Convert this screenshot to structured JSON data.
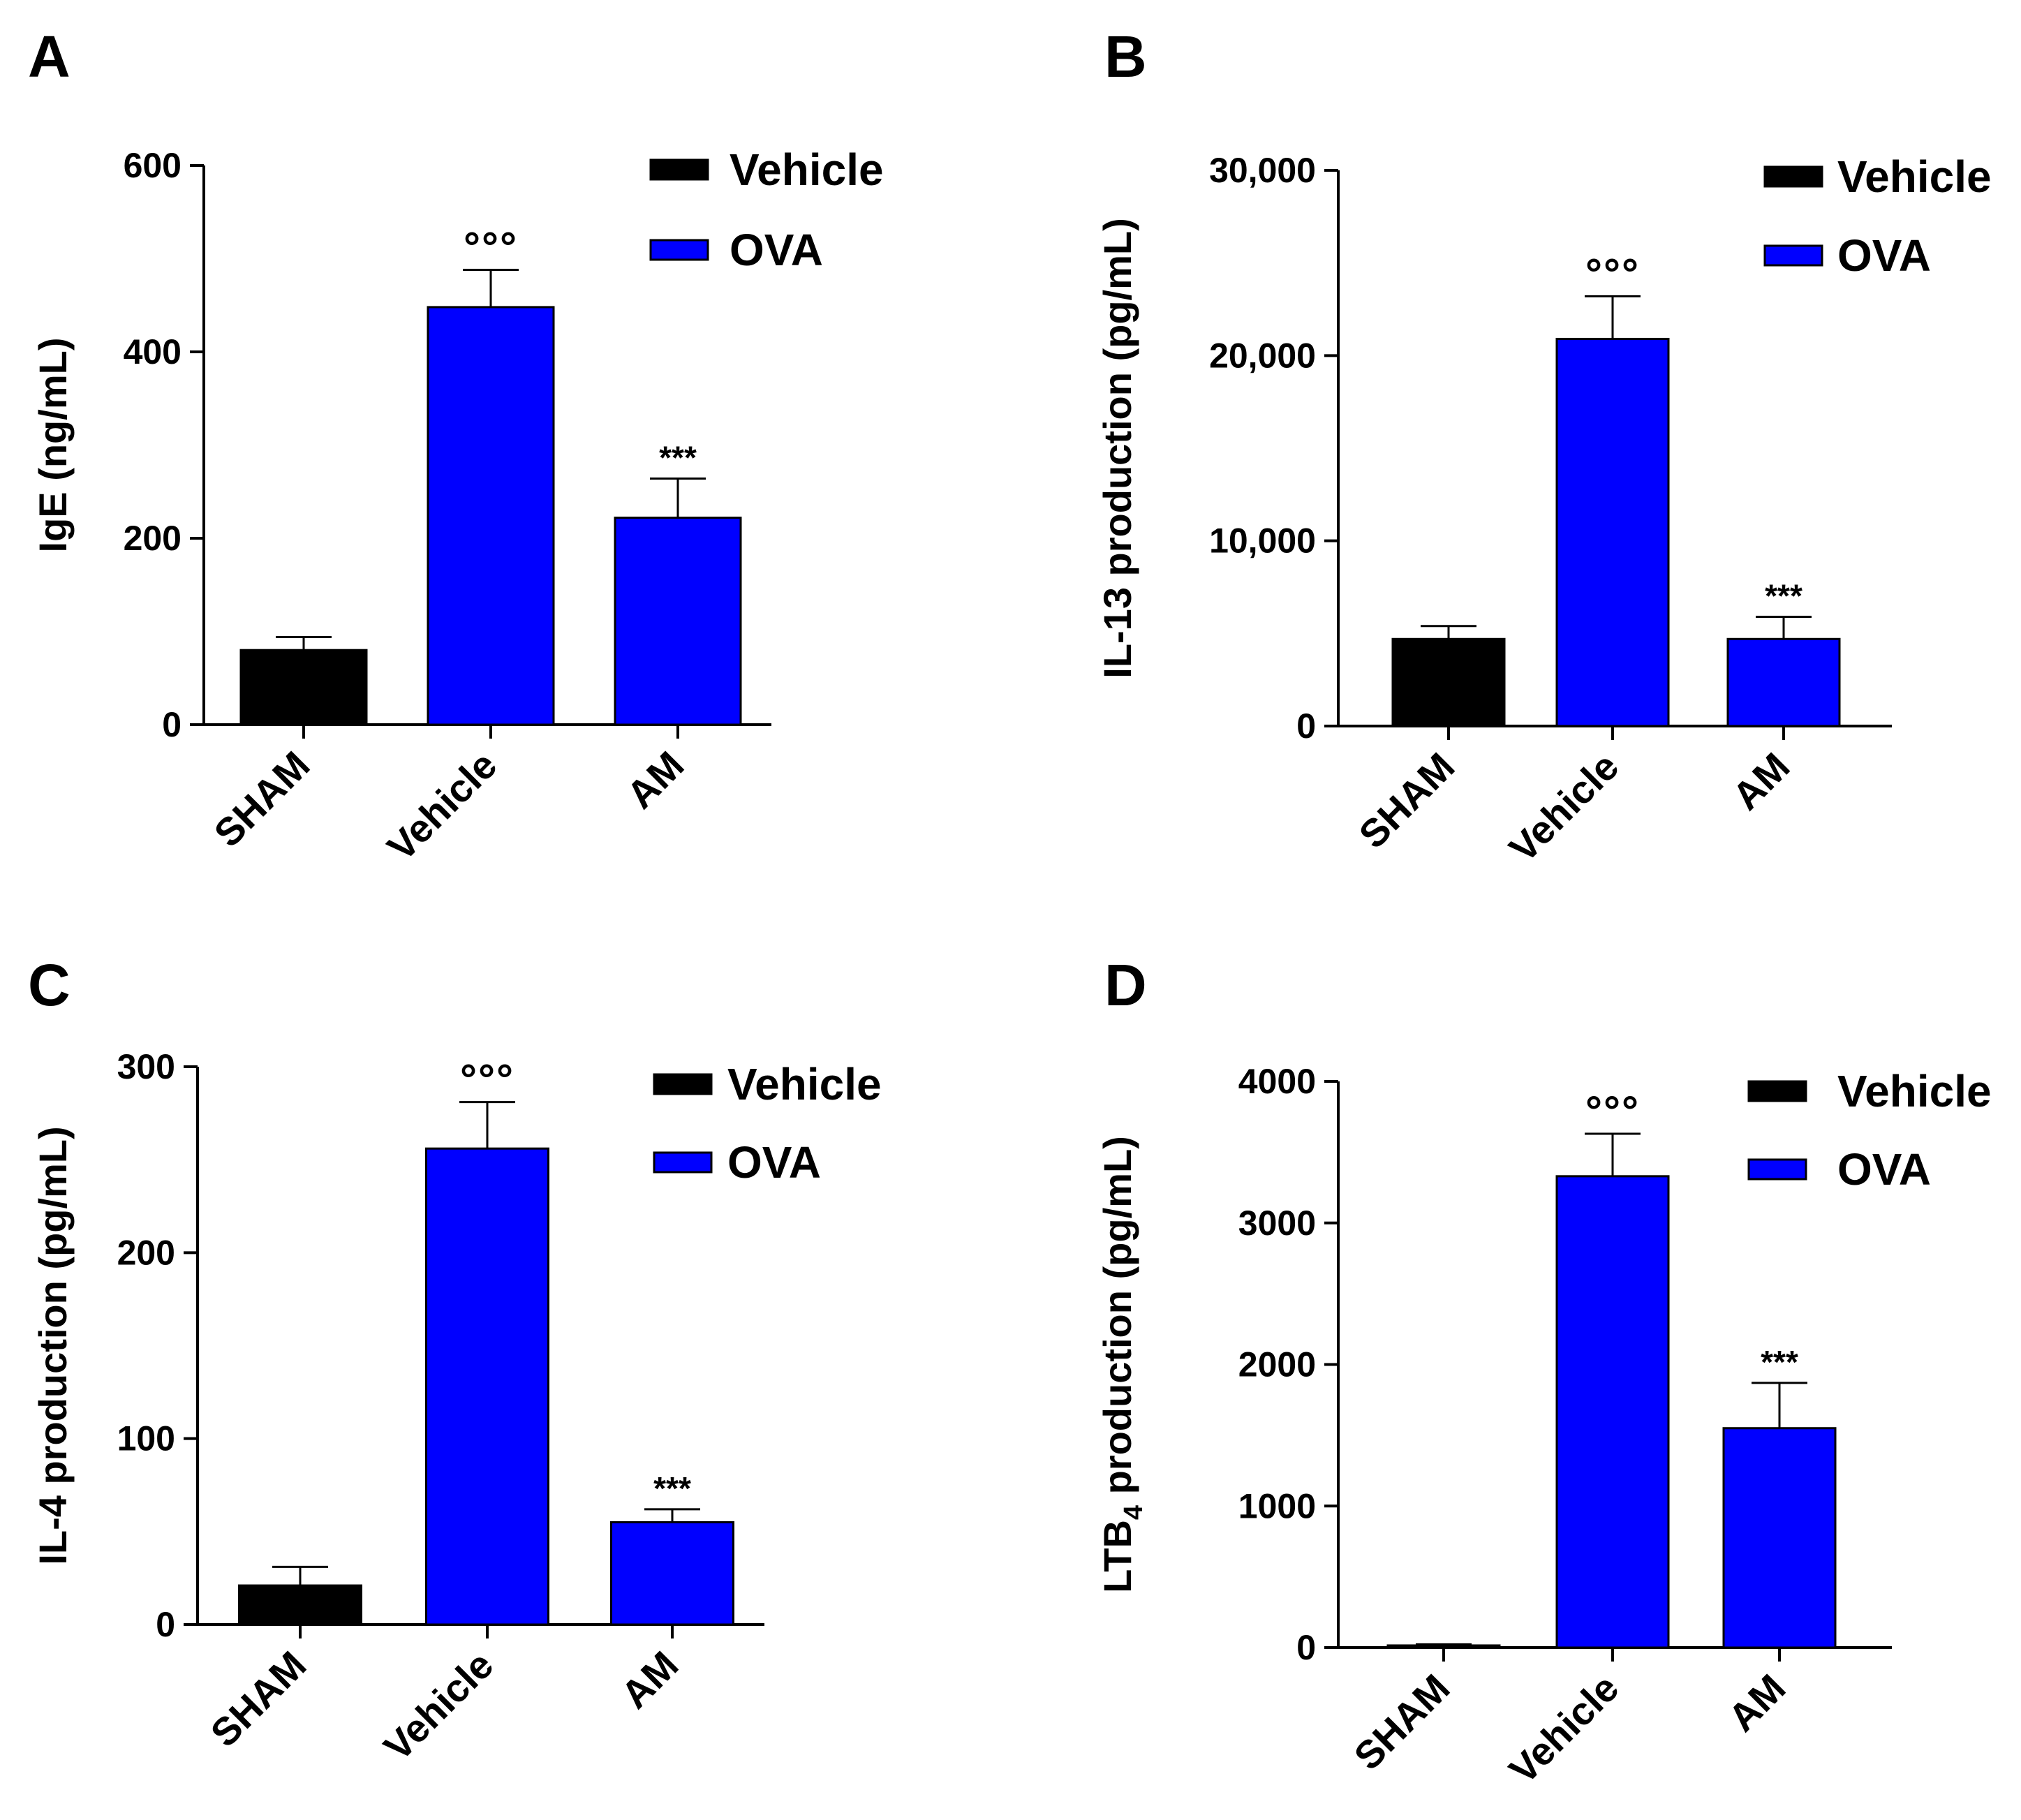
{
  "legend": [
    "Vehicle",
    "OVA"
  ],
  "colors": {
    "vehicle": "#000000",
    "ova": "#0000ff",
    "axis": "#000000",
    "sig": "#333333"
  },
  "chart_data": [
    {
      "panel": "A",
      "type": "bar",
      "categories": [
        "SHAM",
        "Vehicle",
        "AM"
      ],
      "values": [
        80,
        448,
        222
      ],
      "errors": [
        14,
        40,
        42
      ],
      "groups": [
        "Vehicle",
        "OVA",
        "OVA"
      ],
      "annotations": [
        "",
        "°°°",
        "***"
      ],
      "ylabel": "IgE (ng/mL)",
      "ylim": [
        0,
        600
      ],
      "yticks": [
        0,
        200,
        400,
        600
      ],
      "ytick_labels": [
        "0",
        "200",
        "400",
        "600"
      ],
      "legend": [
        "Vehicle",
        "OVA"
      ],
      "legend_position": "top-right"
    },
    {
      "panel": "B",
      "type": "bar",
      "categories": [
        "SHAM",
        "Vehicle",
        "AM"
      ],
      "values": [
        4700,
        20900,
        4700
      ],
      "errors": [
        700,
        2300,
        1200
      ],
      "groups": [
        "Vehicle",
        "OVA",
        "OVA"
      ],
      "annotations": [
        "",
        "°°°",
        "***"
      ],
      "ylabel": "IL-13 production (pg/mL)",
      "ylim": [
        0,
        30000
      ],
      "yticks": [
        0,
        10000,
        20000,
        30000
      ],
      "ytick_labels": [
        "0",
        "10,000",
        "20,000",
        "30,000"
      ],
      "legend": [
        "Vehicle",
        "OVA"
      ],
      "legend_position": "top-right"
    },
    {
      "panel": "C",
      "type": "bar",
      "categories": [
        "SHAM",
        "Vehicle",
        "AM"
      ],
      "values": [
        21,
        256,
        55
      ],
      "errors": [
        10,
        25,
        7
      ],
      "groups": [
        "Vehicle",
        "OVA",
        "OVA"
      ],
      "annotations": [
        "",
        "°°°",
        "***"
      ],
      "ylabel": "IL-4 production (pg/mL)",
      "ylim": [
        0,
        300
      ],
      "yticks": [
        0,
        100,
        200,
        300
      ],
      "ytick_labels": [
        "0",
        "100",
        "200",
        "300"
      ],
      "legend": [
        "Vehicle",
        "OVA"
      ],
      "legend_position": "top-right"
    },
    {
      "panel": "D",
      "type": "bar",
      "categories": [
        "SHAM",
        "Vehicle",
        "AM"
      ],
      "values": [
        15,
        3330,
        1550
      ],
      "errors": [
        8,
        300,
        320
      ],
      "groups": [
        "Vehicle",
        "OVA",
        "OVA"
      ],
      "annotations": [
        "",
        "°°°",
        "***"
      ],
      "ylabel": "LTB4 production (pg/mL)",
      "ylabel_main": "LTB",
      "ylabel_sub": "4",
      "ylabel_rest": " production (pg/mL)",
      "ylim": [
        0,
        4000
      ],
      "yticks": [
        0,
        1000,
        2000,
        3000,
        4000
      ],
      "ytick_labels": [
        "0",
        "1000",
        "2000",
        "3000",
        "4000"
      ],
      "legend": [
        "Vehicle",
        "OVA"
      ],
      "legend_position": "top-right"
    }
  ]
}
